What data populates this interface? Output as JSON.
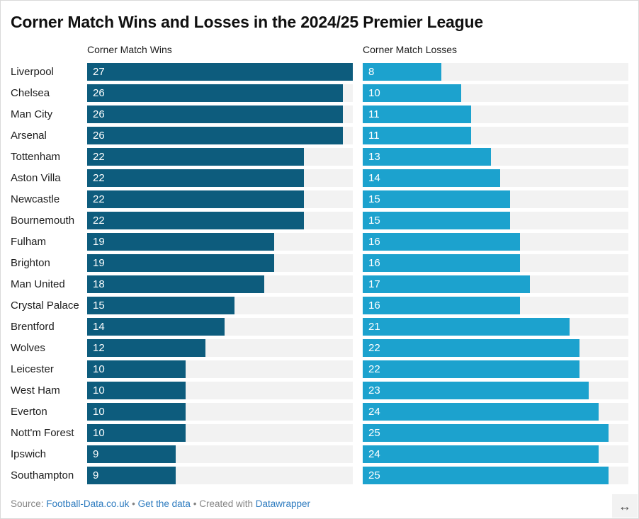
{
  "header": {
    "title": "Corner Match Wins and Losses in the 2024/25 Premier League"
  },
  "chart_data": {
    "type": "bar",
    "orientation": "horizontal",
    "categories": [
      "Liverpool",
      "Chelsea",
      "Man City",
      "Arsenal",
      "Tottenham",
      "Aston Villa",
      "Newcastle",
      "Bournemouth",
      "Fulham",
      "Brighton",
      "Man United",
      "Crystal Palace",
      "Brentford",
      "Wolves",
      "Leicester",
      "West Ham",
      "Everton",
      "Nott'm Forest",
      "Ipswich",
      "Southampton"
    ],
    "series": [
      {
        "name": "Corner Match Wins",
        "color": "#0d5c7d",
        "values": [
          27,
          26,
          26,
          26,
          22,
          22,
          22,
          22,
          19,
          19,
          18,
          15,
          14,
          12,
          10,
          10,
          10,
          10,
          9,
          9
        ]
      },
      {
        "name": "Corner Match Losses",
        "color": "#1ca2ce",
        "values": [
          8,
          10,
          11,
          11,
          13,
          14,
          15,
          15,
          16,
          16,
          17,
          16,
          21,
          22,
          22,
          23,
          24,
          25,
          24,
          25
        ]
      }
    ],
    "xlim": [
      0,
      27
    ],
    "value_labels": "inside-bar-start",
    "value_label_color": "#ffffff",
    "track_color": "#f2f2f2",
    "grid": false,
    "legend_position": "column-headers"
  },
  "footer": {
    "source_label": "Source:",
    "source_link": "Football-Data.co.uk",
    "separator": "•",
    "get_data_link": "Get the data",
    "created_with_label": "Created with",
    "datawrapper_link": "Datawrapper",
    "link_color": "#2d7bbf",
    "text_color": "#848484",
    "resize_icon": "horizontal-resize-arrow",
    "resize_glyph": "↔"
  }
}
